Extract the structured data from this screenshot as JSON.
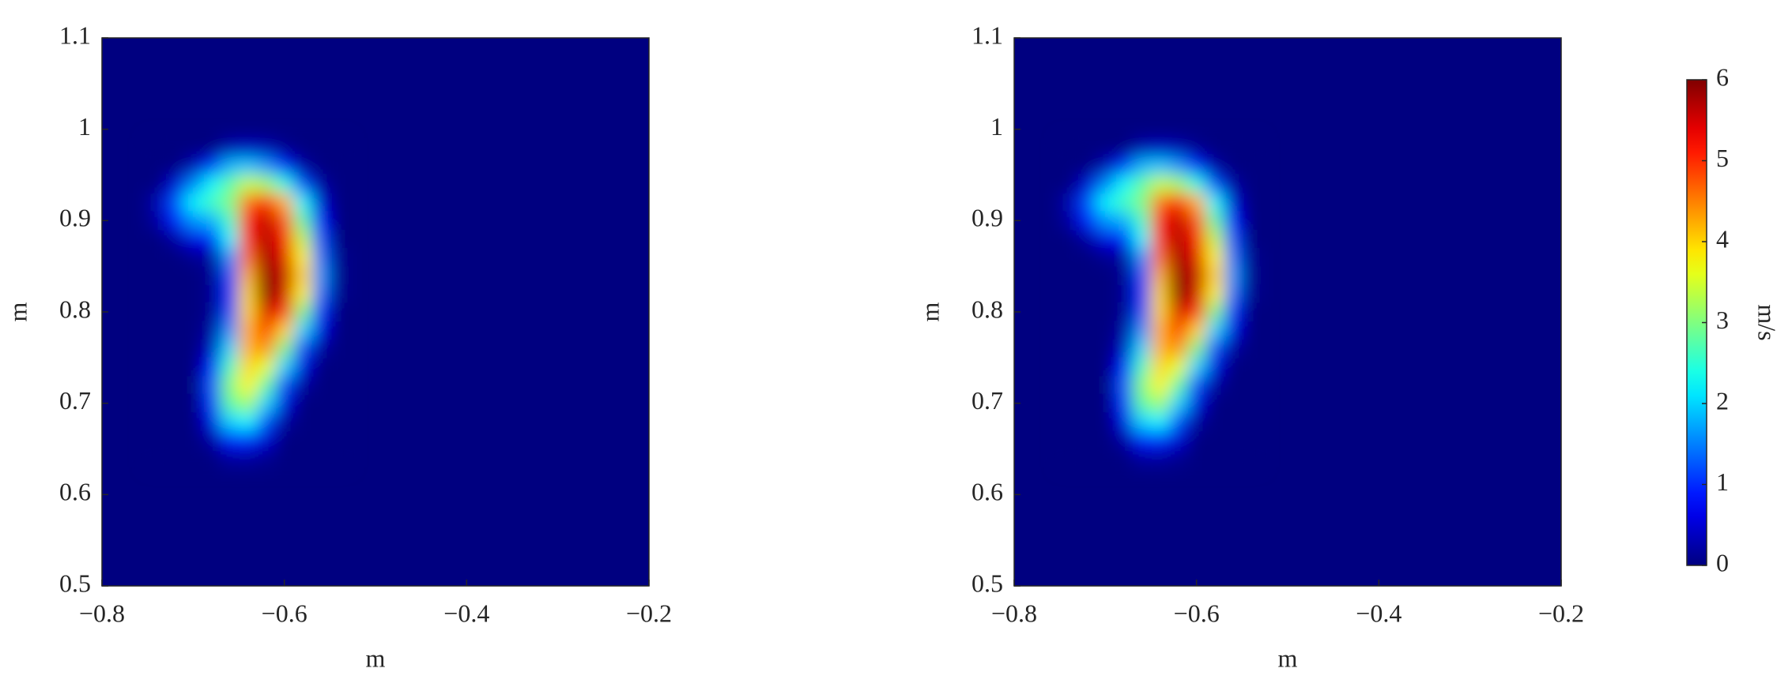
{
  "chart_data": [
    {
      "type": "heatmap",
      "xlabel": "m",
      "ylabel": "m",
      "xlim": [
        -0.8,
        -0.2
      ],
      "ylim": [
        0.5,
        1.1
      ],
      "xticks": [
        {
          "value": -0.8,
          "label": "−0.8"
        },
        {
          "value": -0.6,
          "label": "−0.6"
        },
        {
          "value": -0.4,
          "label": "−0.4"
        },
        {
          "value": -0.2,
          "label": "−0.2"
        }
      ],
      "yticks": [
        0.5,
        0.6,
        0.7,
        0.8,
        0.9,
        1,
        1.1
      ],
      "colormap": "jet",
      "x": [
        -0.74,
        -0.72,
        -0.7,
        -0.68,
        -0.66,
        -0.64,
        -0.62,
        -0.6,
        -0.58,
        -0.56,
        -0.54
      ],
      "y": [
        0.98,
        0.96,
        0.94,
        0.92,
        0.9,
        0.88,
        0.86,
        0.84,
        0.82,
        0.8,
        0.78,
        0.76,
        0.74,
        0.72,
        0.7,
        0.68,
        0.66,
        0.64
      ],
      "z": [
        [
          0,
          0,
          0,
          0,
          0.3,
          0.4,
          0.3,
          0.1,
          0,
          0,
          0
        ],
        [
          0,
          0,
          0.3,
          1,
          1.8,
          1.9,
          1.6,
          0.9,
          0.2,
          0,
          0
        ],
        [
          0,
          0.5,
          1.5,
          2.2,
          2.8,
          3.4,
          3.2,
          2.4,
          1.2,
          0.2,
          0
        ],
        [
          0.3,
          1.2,
          2.2,
          2.6,
          3,
          4.6,
          5.2,
          4.2,
          2.2,
          0.5,
          0
        ],
        [
          0.2,
          0.9,
          1.6,
          1.8,
          2.6,
          5.2,
          5.6,
          4.8,
          2.8,
          0.8,
          0
        ],
        [
          0,
          0.2,
          0.6,
          0.8,
          2.2,
          5,
          5.7,
          5.2,
          3.4,
          1.2,
          0
        ],
        [
          0,
          0,
          0.1,
          0.2,
          1.6,
          4.6,
          5.8,
          5.4,
          3.8,
          1.4,
          0.1
        ],
        [
          0,
          0,
          0,
          0.1,
          1.2,
          4.2,
          5.9,
          5.6,
          4,
          1.6,
          0.1
        ],
        [
          0,
          0,
          0,
          0.1,
          1,
          4,
          6,
          5.5,
          3.8,
          1.4,
          0.1
        ],
        [
          0,
          0,
          0,
          0.1,
          1.2,
          4,
          5.5,
          5,
          3,
          1,
          0
        ],
        [
          0,
          0,
          0,
          0.2,
          1.6,
          4.2,
          5,
          4,
          2,
          0.6,
          0
        ],
        [
          0,
          0,
          0,
          0.4,
          2,
          4.2,
          4.4,
          3,
          1.2,
          0.2,
          0
        ],
        [
          0,
          0,
          0,
          0.8,
          2.6,
          4,
          3.6,
          2,
          0.6,
          0,
          0
        ],
        [
          0,
          0,
          0,
          1.2,
          3,
          3.8,
          2.8,
          1.2,
          0.2,
          0,
          0
        ],
        [
          0,
          0,
          0,
          1,
          2.8,
          3.2,
          2,
          0.6,
          0,
          0,
          0
        ],
        [
          0,
          0,
          0,
          0.6,
          2,
          2.2,
          1.2,
          0.2,
          0,
          0,
          0
        ],
        [
          0,
          0,
          0,
          0.2,
          0.9,
          1,
          0.5,
          0,
          0,
          0,
          0
        ],
        [
          0,
          0,
          0,
          0,
          0.2,
          0.2,
          0.1,
          0,
          0,
          0,
          0
        ]
      ]
    },
    {
      "type": "heatmap",
      "xlabel": "m",
      "ylabel": "m",
      "xlim": [
        -0.8,
        -0.2
      ],
      "ylim": [
        0.5,
        1.1
      ],
      "xticks": [
        {
          "value": -0.8,
          "label": "−0.8"
        },
        {
          "value": -0.6,
          "label": "−0.6"
        },
        {
          "value": -0.4,
          "label": "−0.4"
        },
        {
          "value": -0.2,
          "label": "−0.2"
        }
      ],
      "yticks": [
        0.5,
        0.6,
        0.7,
        0.8,
        0.9,
        1,
        1.1
      ],
      "colormap": "jet",
      "x": [
        -0.74,
        -0.72,
        -0.7,
        -0.68,
        -0.66,
        -0.64,
        -0.62,
        -0.6,
        -0.58,
        -0.56,
        -0.54
      ],
      "y": [
        0.98,
        0.96,
        0.94,
        0.92,
        0.9,
        0.88,
        0.86,
        0.84,
        0.82,
        0.8,
        0.78,
        0.76,
        0.74,
        0.72,
        0.7,
        0.68,
        0.66,
        0.64
      ],
      "z": [
        [
          0,
          0,
          0,
          0,
          0.3,
          0.4,
          0.3,
          0.1,
          0,
          0,
          0
        ],
        [
          0,
          0,
          0.3,
          1,
          1.8,
          1.9,
          1.6,
          0.9,
          0.2,
          0,
          0
        ],
        [
          0,
          0.5,
          1.5,
          2.2,
          2.8,
          3.4,
          3.2,
          2.4,
          1.2,
          0.2,
          0
        ],
        [
          0.3,
          1.2,
          2.2,
          2.6,
          3,
          4.6,
          5.2,
          4.2,
          2.2,
          0.5,
          0
        ],
        [
          0.2,
          0.9,
          1.6,
          1.8,
          2.6,
          5.2,
          5.6,
          4.8,
          2.8,
          0.8,
          0
        ],
        [
          0,
          0.2,
          0.6,
          0.8,
          2.2,
          5,
          5.7,
          5.2,
          3.4,
          1.2,
          0
        ],
        [
          0,
          0,
          0.1,
          0.2,
          1.6,
          4.6,
          5.8,
          5.4,
          3.8,
          1.4,
          0.1
        ],
        [
          0,
          0,
          0,
          0.1,
          1.2,
          4.2,
          5.9,
          5.6,
          4,
          1.6,
          0.1
        ],
        [
          0,
          0,
          0,
          0.1,
          1,
          4,
          6,
          5.5,
          3.8,
          1.4,
          0.1
        ],
        [
          0,
          0,
          0,
          0.1,
          1.2,
          4,
          5.5,
          5,
          3,
          1,
          0
        ],
        [
          0,
          0,
          0,
          0.2,
          1.6,
          4.2,
          5,
          4,
          2,
          0.6,
          0
        ],
        [
          0,
          0,
          0,
          0.4,
          2,
          4.2,
          4.4,
          3,
          1.2,
          0.2,
          0
        ],
        [
          0,
          0,
          0,
          0.8,
          2.6,
          4,
          3.6,
          2,
          0.6,
          0,
          0
        ],
        [
          0,
          0,
          0,
          1.2,
          3,
          3.8,
          2.8,
          1.2,
          0.2,
          0,
          0
        ],
        [
          0,
          0,
          0,
          1,
          2.8,
          3.2,
          2,
          0.6,
          0,
          0,
          0
        ],
        [
          0,
          0,
          0,
          0.6,
          2,
          2.2,
          1.2,
          0.2,
          0,
          0,
          0
        ],
        [
          0,
          0,
          0,
          0.2,
          0.9,
          1,
          0.5,
          0,
          0,
          0,
          0
        ],
        [
          0,
          0,
          0,
          0,
          0.2,
          0.2,
          0.1,
          0,
          0,
          0,
          0
        ]
      ],
      "colorbar": {
        "label": "m/s",
        "clim": [
          0,
          6
        ],
        "ticks": [
          0,
          1,
          2,
          3,
          4,
          5,
          6
        ]
      }
    }
  ]
}
